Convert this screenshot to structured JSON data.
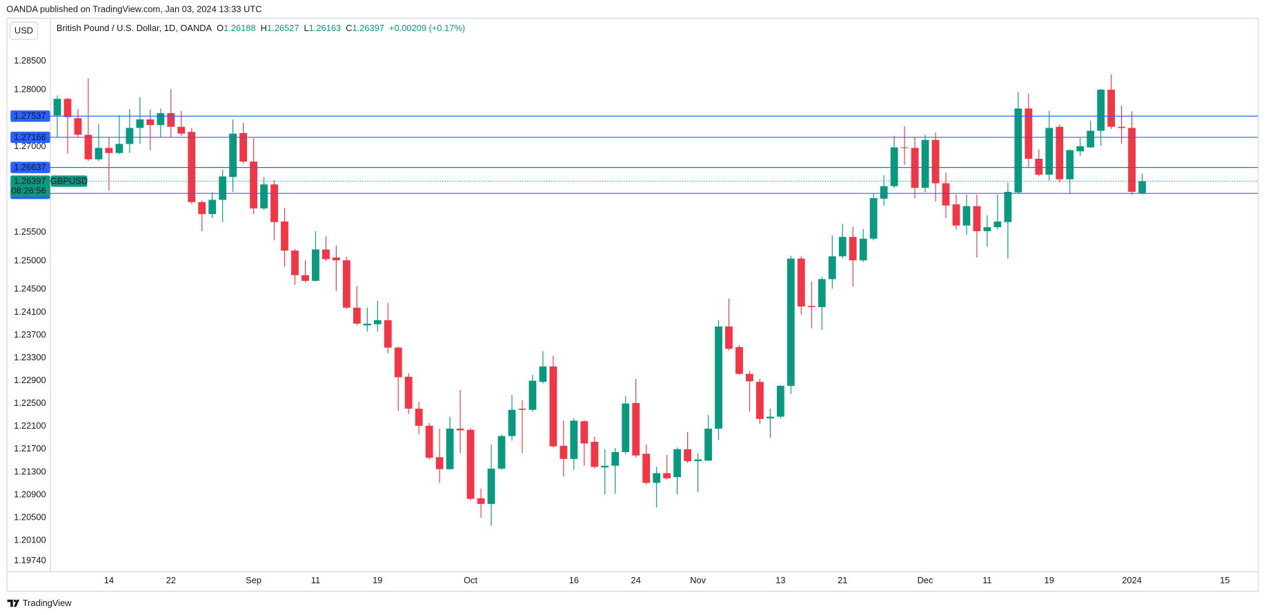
{
  "header": {
    "published": "OANDA published on TradingView.com, Jan 03, 2024 13:33 UTC",
    "brand": "TradingView"
  },
  "chart_data": {
    "type": "candlestick",
    "currency": "USD",
    "title": "British Pound / U.S. Dollar, 1D, OANDA",
    "legend_keys": [
      "O",
      "H",
      "L",
      "C"
    ],
    "change": "+0.00209 (+0.17%)",
    "symbol": "GBPUSD",
    "countdown": "08:26:56",
    "up_color": "#089981",
    "down_color": "#f23645",
    "open": [
      1.2755,
      1.2784,
      1.275,
      1.2721,
      1.2678,
      1.2698,
      1.2689,
      1.2705,
      1.2733,
      1.2748,
      1.2738,
      1.2759,
      1.2735,
      1.2726,
      1.2603,
      1.2582,
      1.2607,
      1.2647,
      1.2724,
      1.2674,
      1.2592,
      1.2634,
      1.2569,
      1.2518,
      1.2475,
      1.2465,
      1.252,
      1.2506,
      1.2501,
      1.2418,
      1.2387,
      1.2389,
      1.2396,
      1.2348,
      1.2297,
      1.2241,
      1.2211,
      1.2156,
      1.2135,
      1.2206,
      1.2204,
      1.2084,
      1.2074,
      1.2136,
      1.2193,
      1.2241,
      1.2239,
      1.2288,
      1.2315,
      1.2176,
      1.2153,
      1.2219,
      1.2183,
      1.2138,
      1.2141,
      1.2165,
      1.2251,
      1.2162,
      1.2111,
      1.2128,
      1.2121,
      1.217,
      1.2149,
      1.215,
      1.2206,
      1.2385,
      1.2349,
      1.2302,
      1.2288,
      1.2224,
      1.2227,
      1.2281,
      1.2504,
      1.2421,
      1.2419,
      1.2468,
      1.2508,
      1.2542,
      1.2501,
      1.2539,
      1.2609,
      1.2631,
      1.2699,
      1.2698,
      1.2628,
      1.2712,
      1.2636,
      1.2599,
      1.2562,
      1.2596,
      1.2552,
      1.2559,
      1.2568,
      1.262,
      1.2767,
      1.2679,
      1.2651,
      1.2735,
      1.2643,
      1.2692,
      1.2699,
      1.2728,
      1.28,
      1.2735,
      1.2733,
      1.26188
    ],
    "high": [
      1.279,
      1.2786,
      1.2766,
      1.282,
      1.274,
      1.2716,
      1.2755,
      1.2766,
      1.2787,
      1.2765,
      1.2767,
      1.2801,
      1.2763,
      1.2733,
      1.2606,
      1.262,
      1.266,
      1.2748,
      1.2742,
      1.2715,
      1.2647,
      1.2641,
      1.2592,
      1.2521,
      1.2501,
      1.2552,
      1.2543,
      1.2527,
      1.2507,
      1.2456,
      1.2418,
      1.243,
      1.2426,
      1.235,
      1.2303,
      1.2253,
      1.2216,
      1.2206,
      1.2227,
      1.2274,
      1.2207,
      1.2101,
      1.2178,
      1.2196,
      1.2265,
      1.2256,
      1.23,
      1.2342,
      1.2334,
      1.222,
      1.2224,
      1.2221,
      1.2192,
      1.217,
      1.2172,
      1.2263,
      1.2293,
      1.2178,
      1.2139,
      1.216,
      1.2173,
      1.22,
      1.2163,
      1.223,
      1.2396,
      1.2434,
      1.2352,
      1.2307,
      1.2293,
      1.2241,
      1.2282,
      1.2509,
      1.2508,
      1.2464,
      1.2472,
      1.2545,
      1.2565,
      1.256,
      1.2556,
      1.2618,
      1.265,
      1.2719,
      1.2736,
      1.2716,
      1.2721,
      1.2725,
      1.2655,
      1.2616,
      1.2616,
      1.2616,
      1.258,
      1.2616,
      1.2637,
      1.2796,
      1.2793,
      1.2695,
      1.2763,
      1.2739,
      1.2696,
      1.2715,
      1.2746,
      1.2801,
      1.2827,
      1.2772,
      1.2762,
      1.26527
    ],
    "low": [
      1.2716,
      1.2688,
      1.2716,
      1.2675,
      1.2675,
      1.2623,
      1.2687,
      1.2689,
      1.2705,
      1.2694,
      1.2716,
      1.2716,
      1.2719,
      1.26,
      1.2552,
      1.2575,
      1.2568,
      1.2621,
      1.2671,
      1.2582,
      1.2589,
      1.2536,
      1.249,
      1.2458,
      1.2462,
      1.2464,
      1.25,
      1.2447,
      1.2415,
      1.2387,
      1.2376,
      1.2376,
      1.2338,
      1.2237,
      1.2232,
      1.2196,
      1.2152,
      1.2111,
      1.2134,
      1.2163,
      1.208,
      1.205,
      1.2036,
      1.2134,
      1.2185,
      1.2163,
      1.2236,
      1.2285,
      1.2173,
      1.2122,
      1.2134,
      1.2141,
      1.2136,
      1.2091,
      1.2092,
      1.2162,
      1.2155,
      1.2108,
      1.2068,
      1.2117,
      1.2091,
      1.2146,
      1.2095,
      1.2149,
      1.2186,
      1.2343,
      1.23,
      1.2236,
      1.2214,
      1.219,
      1.2224,
      1.2267,
      1.2406,
      1.2382,
      1.2379,
      1.2451,
      1.2504,
      1.2455,
      1.2498,
      1.2536,
      1.2597,
      1.2628,
      1.2668,
      1.261,
      1.262,
      1.2604,
      1.2575,
      1.2555,
      1.2546,
      1.2506,
      1.2525,
      1.2555,
      1.2504,
      1.2617,
      1.2664,
      1.2648,
      1.2641,
      1.2638,
      1.2617,
      1.2684,
      1.2698,
      1.2702,
      1.2731,
      1.2705,
      1.2616,
      1.26163
    ],
    "close": [
      1.2784,
      1.2752,
      1.2721,
      1.2678,
      1.2698,
      1.2689,
      1.2705,
      1.2733,
      1.2748,
      1.2738,
      1.2759,
      1.2735,
      1.2723,
      1.2603,
      1.2582,
      1.2607,
      1.2648,
      1.2723,
      1.2674,
      1.2592,
      1.2634,
      1.2568,
      1.2518,
      1.2475,
      1.2465,
      1.252,
      1.2503,
      1.2501,
      1.2418,
      1.239,
      1.239,
      1.2396,
      1.2348,
      1.2296,
      1.2241,
      1.2211,
      1.2155,
      1.2135,
      1.2206,
      1.2203,
      1.2083,
      1.2074,
      1.2136,
      1.2193,
      1.2239,
      1.2239,
      1.229,
      1.2315,
      1.2175,
      1.2153,
      1.222,
      1.218,
      1.2139,
      1.2141,
      1.2165,
      1.225,
      1.2159,
      1.2111,
      1.2128,
      1.2119,
      1.217,
      1.2149,
      1.2152,
      1.2206,
      1.2385,
      1.2346,
      1.2302,
      1.2289,
      1.2223,
      1.2227,
      1.2281,
      1.2504,
      1.242,
      1.2419,
      1.2468,
      1.2508,
      1.2542,
      1.2501,
      1.2539,
      1.261,
      1.2631,
      1.2699,
      1.2698,
      1.2628,
      1.2712,
      1.2636,
      1.2597,
      1.2562,
      1.2596,
      1.2552,
      1.2559,
      1.2569,
      1.2621,
      1.2767,
      1.2679,
      1.2651,
      1.2733,
      1.2643,
      1.2694,
      1.2701,
      1.2728,
      1.28,
      1.2735,
      1.2733,
      1.2621,
      1.26397
    ],
    "levels": [
      1.27537,
      1.27166,
      1.26637,
      1.26183
    ],
    "level_color": "#2962ff",
    "ylim": [
      1.1956,
      1.2926
    ],
    "yticks": [
      {
        "value": 1.285,
        "label": "1.28500"
      },
      {
        "value": 1.28,
        "label": "1.28000"
      },
      {
        "value": 1.27,
        "label": "1.27000"
      },
      {
        "value": 1.255,
        "label": "1.25500"
      },
      {
        "value": 1.25,
        "label": "1.25000"
      },
      {
        "value": 1.245,
        "label": "1.24500"
      },
      {
        "value": 1.241,
        "label": "1.24100"
      },
      {
        "value": 1.237,
        "label": "1.23700"
      },
      {
        "value": 1.233,
        "label": "1.23300"
      },
      {
        "value": 1.229,
        "label": "1.22900"
      },
      {
        "value": 1.225,
        "label": "1.22500"
      },
      {
        "value": 1.221,
        "label": "1.22100"
      },
      {
        "value": 1.217,
        "label": "1.21700"
      },
      {
        "value": 1.213,
        "label": "1.21300"
      },
      {
        "value": 1.209,
        "label": "1.20900"
      },
      {
        "value": 1.205,
        "label": "1.20500"
      },
      {
        "value": 1.201,
        "label": "1.20100"
      },
      {
        "value": 1.1974,
        "label": "1.19740"
      }
    ],
    "xlim": [
      -0.7,
      116.2
    ],
    "xticks": [
      {
        "value": 5,
        "label": "14"
      },
      {
        "value": 11,
        "label": "22"
      },
      {
        "value": 19,
        "label": "Sep"
      },
      {
        "value": 25,
        "label": "11"
      },
      {
        "value": 31,
        "label": "19"
      },
      {
        "value": 40,
        "label": "Oct"
      },
      {
        "value": 50,
        "label": "16"
      },
      {
        "value": 56,
        "label": "24"
      },
      {
        "value": 62,
        "label": "Nov"
      },
      {
        "value": 70,
        "label": "13"
      },
      {
        "value": 76,
        "label": "21"
      },
      {
        "value": 84,
        "label": "Dec"
      },
      {
        "value": 90,
        "label": "11"
      },
      {
        "value": 96,
        "label": "19"
      },
      {
        "value": 104,
        "label": "2024"
      },
      {
        "value": 113,
        "label": "15"
      }
    ],
    "grid": false
  }
}
